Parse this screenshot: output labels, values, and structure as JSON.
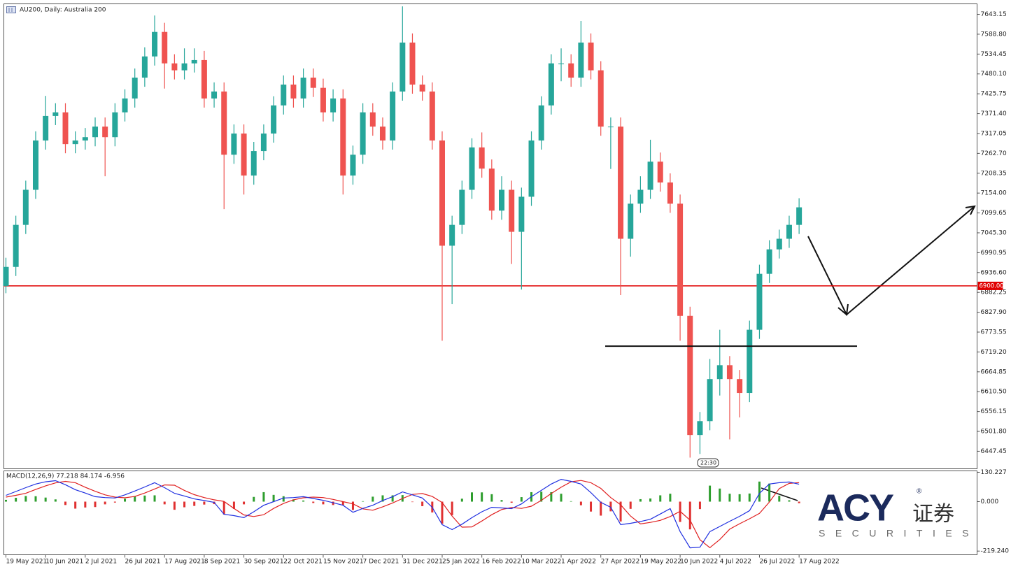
{
  "chart_data": [
    {
      "type": "candlestick",
      "title": "AU200, Daily:  Australia 200",
      "up_color": "#26a69a",
      "down_color": "#ef5350",
      "open": [
        6900,
        6952,
        7067,
        7163,
        7298,
        7365,
        7375,
        7288,
        7298,
        7307,
        7336,
        7307,
        7375,
        7413,
        7470,
        7528,
        7595,
        7509,
        7490,
        7509,
        7518,
        7413,
        7432,
        7259,
        7317,
        7202,
        7269,
        7317,
        7394,
        7451,
        7413,
        7470,
        7442,
        7375,
        7413,
        7202,
        7259,
        7375,
        7336,
        7298,
        7432,
        7566,
        7451,
        7432,
        7298,
        7010,
        7067,
        7163,
        7279,
        7221,
        7106,
        7163,
        7048,
        7144,
        7298,
        7394,
        7509,
        7509,
        7470,
        7566,
        7490,
        7336,
        7336,
        7029,
        7125,
        7163,
        7240,
        7183,
        7125,
        6818,
        6492,
        6530,
        6645,
        6683,
        6645,
        6607,
        6780,
        6933,
        7000,
        7029,
        7067
      ],
      "high": [
        6977,
        7092,
        7188,
        7323,
        7420,
        7400,
        7400,
        7323,
        7332,
        7361,
        7361,
        7400,
        7438,
        7495,
        7553,
        7640,
        7620,
        7534,
        7550,
        7550,
        7543,
        7457,
        7457,
        7342,
        7342,
        7294,
        7342,
        7419,
        7476,
        7476,
        7495,
        7495,
        7467,
        7438,
        7438,
        7284,
        7400,
        7400,
        7361,
        7457,
        7665,
        7591,
        7476,
        7457,
        7323,
        7092,
        7188,
        7304,
        7320,
        7246,
        7200,
        7188,
        7169,
        7323,
        7419,
        7534,
        7550,
        7534,
        7625,
        7591,
        7515,
        7361,
        7361,
        7150,
        7200,
        7300,
        7265,
        7208,
        7150,
        6843,
        6555,
        6700,
        6780,
        6708,
        6670,
        6805,
        6958,
        7025,
        7054,
        7092,
        7140
      ],
      "low": [
        6880,
        6927,
        7042,
        7138,
        7273,
        7340,
        7263,
        7263,
        7273,
        7282,
        7200,
        7282,
        7350,
        7388,
        7445,
        7503,
        7440,
        7465,
        7465,
        7484,
        7388,
        7388,
        7110,
        7234,
        7150,
        7177,
        7244,
        7292,
        7369,
        7388,
        7388,
        7417,
        7350,
        7350,
        7150,
        7177,
        7234,
        7311,
        7273,
        7273,
        7407,
        7426,
        7407,
        7273,
        6750,
        6850,
        7042,
        7138,
        7196,
        7081,
        7081,
        6960,
        6890,
        7119,
        7273,
        7369,
        7460,
        7445,
        7445,
        7465,
        7311,
        7220,
        6875,
        6980,
        7100,
        7138,
        7158,
        7100,
        6750,
        6430,
        6440,
        6505,
        6600,
        6480,
        6540,
        6582,
        6755,
        6908,
        6975,
        7004,
        7042
      ],
      "close": [
        6952,
        7067,
        7163,
        7298,
        7365,
        7375,
        7288,
        7298,
        7307,
        7336,
        7307,
        7375,
        7413,
        7470,
        7528,
        7595,
        7509,
        7490,
        7509,
        7518,
        7413,
        7432,
        7259,
        7317,
        7202,
        7269,
        7317,
        7394,
        7451,
        7413,
        7470,
        7442,
        7375,
        7413,
        7202,
        7259,
        7375,
        7336,
        7298,
        7432,
        7566,
        7451,
        7432,
        7298,
        7010,
        7067,
        7163,
        7279,
        7221,
        7106,
        7163,
        7048,
        7144,
        7298,
        7394,
        7509,
        7509,
        7470,
        7566,
        7490,
        7336,
        7336,
        7029,
        7125,
        7163,
        7240,
        7183,
        7125,
        6818,
        6492,
        6530,
        6645,
        6683,
        6645,
        6607,
        6780,
        6933,
        7000,
        7029,
        7067,
        7115
      ],
      "xlim": [
        -0.21,
        97.95
      ],
      "xticks": [
        {
          "value": 0,
          "label": "19 May 2021"
        },
        {
          "value": 4,
          "label": "10 Jun 2021"
        },
        {
          "value": 8,
          "label": "2 Jul 2021"
        },
        {
          "value": 12,
          "label": "26 Jul 2021"
        },
        {
          "value": 16,
          "label": "17 Aug 2021"
        },
        {
          "value": 20,
          "label": "8 Sep 2021"
        },
        {
          "value": 24,
          "label": "30 Sep 2021"
        },
        {
          "value": 28,
          "label": "22 Oct 2021"
        },
        {
          "value": 32,
          "label": "15 Nov 2021"
        },
        {
          "value": 36,
          "label": "7 Dec 2021"
        },
        {
          "value": 40,
          "label": "31 Dec 2021"
        },
        {
          "value": 44,
          "label": "25 Jan 2022"
        },
        {
          "value": 48,
          "label": "16 Feb 2022"
        },
        {
          "value": 52,
          "label": "10 Mar 2022"
        },
        {
          "value": 56,
          "label": "1 Apr 2022"
        },
        {
          "value": 60,
          "label": "27 Apr 2022"
        },
        {
          "value": 64,
          "label": "19 May 2022"
        },
        {
          "value": 68,
          "label": "10 Jun 2022"
        },
        {
          "value": 72,
          "label": "4 Jul 2022"
        },
        {
          "value": 76,
          "label": "26 Jul 2022"
        },
        {
          "value": 80,
          "label": "17 Aug 2022"
        }
      ],
      "ylim": [
        6399.5,
        7671.9
      ],
      "yticks": [
        7643.15,
        {
          "value": 7588.8,
          "label": "7588.80"
        },
        7534.45,
        {
          "value": 7480.1,
          "label": "7480.10"
        },
        7425.75,
        {
          "value": 7371.4,
          "label": "7371.40"
        },
        7317.05,
        {
          "value": 7262.7,
          "label": "7262.70"
        },
        7208.35,
        {
          "value": 7154,
          "label": "7154.00"
        },
        7099.65,
        {
          "value": 7045.3,
          "label": "7045.30"
        },
        6990.95,
        {
          "value": 6936.6,
          "label": "6936.60"
        },
        6882.25,
        {
          "value": 6827.9,
          "label": "6827.90"
        },
        6773.55,
        {
          "value": 6719.2,
          "label": "6719.20"
        },
        6664.85,
        {
          "value": 6610.5,
          "label": "6610.50"
        },
        6556.15,
        {
          "value": 6501.8,
          "label": "6501.80"
        },
        6447.45
      ],
      "level": {
        "value": 6900,
        "label": "6900.00",
        "color": "#e00000"
      },
      "support_level": 6735,
      "timer_label": "22:30"
    },
    {
      "type": "macd",
      "title": "MACD(12,26,9) 77.218 84.174 -6.956",
      "macd_color": "#1f2fe0",
      "signal_color": "#e02020",
      "up_color": "#2e9e2e",
      "down_color": "#e03030",
      "macd": [
        28,
        45,
        62,
        78,
        88,
        93,
        75,
        53,
        38,
        22,
        18,
        16,
        30,
        47,
        65,
        84,
        62,
        37,
        25,
        12,
        5,
        -3,
        -56,
        -62,
        -71,
        -45,
        -16,
        0,
        16,
        18,
        22,
        14,
        6,
        -5,
        -16,
        -47,
        -30,
        -16,
        5,
        22,
        43,
        30,
        16,
        -25,
        -102,
        -124,
        -100,
        -71,
        -45,
        -25,
        -28,
        -31,
        -10,
        22,
        50,
        78,
        99,
        90,
        78,
        40,
        -3,
        -25,
        -102,
        -96,
        -88,
        -78,
        -55,
        -31,
        -133,
        -205,
        -202,
        -133,
        -110,
        -87,
        -65,
        -40,
        37,
        78,
        84,
        87,
        77.218
      ],
      "signal": [
        20,
        28,
        37,
        54,
        70,
        83,
        90,
        84,
        64,
        46,
        30,
        20,
        17,
        23,
        38,
        56,
        74,
        73,
        50,
        31,
        18,
        8,
        1,
        -30,
        -59,
        -66,
        -58,
        -30,
        -8,
        8,
        17,
        20,
        18,
        10,
        0,
        -10,
        -32,
        -38,
        -23,
        -6,
        14,
        32,
        36,
        23,
        -4,
        -64,
        -113,
        -112,
        -86,
        -58,
        -35,
        -26,
        -30,
        -20,
        6,
        36,
        64,
        88,
        94,
        84,
        59,
        18,
        -14,
        -64,
        -99,
        -92,
        -83,
        -66,
        -43,
        -82,
        -169,
        -204,
        -168,
        -122,
        -98,
        -76,
        -52,
        -2,
        58,
        81,
        84.174
      ],
      "histogram": [
        8,
        17,
        25,
        24,
        18,
        10,
        -15,
        -31,
        -26,
        -24,
        -12,
        -4,
        13,
        24,
        27,
        28,
        -12,
        -36,
        -25,
        -19,
        -13,
        -11,
        -57,
        -32,
        -12,
        21,
        42,
        30,
        24,
        10,
        5,
        -6,
        -12,
        -15,
        -16,
        -37,
        2,
        22,
        28,
        28,
        29,
        -2,
        -20,
        -48,
        -98,
        -60,
        13,
        41,
        41,
        33,
        7,
        -5,
        20,
        42,
        44,
        42,
        35,
        2,
        -16,
        -44,
        -62,
        -43,
        -88,
        -32,
        11,
        14,
        28,
        35,
        -90,
        -123,
        -33,
        71,
        58,
        35,
        33,
        36,
        89,
        80,
        26,
        6,
        -6.956
      ],
      "ylim": [
        -235.6,
        136.4
      ],
      "yticks": [
        130.227,
        {
          "value": 0,
          "label": "0.000"
        },
        {
          "value": -219.24,
          "label": "-219.240"
        }
      ]
    }
  ],
  "logo": {
    "name": "ACY",
    "mark": "®",
    "cn": "证券",
    "sub": "SECURITIES"
  }
}
